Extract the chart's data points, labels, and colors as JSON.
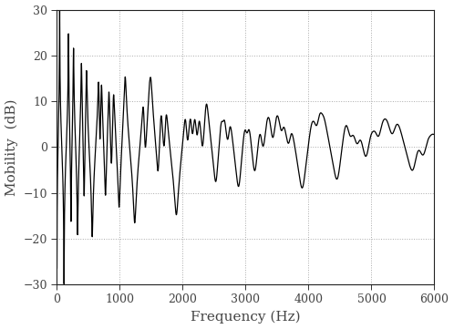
{
  "title": "",
  "xlabel": "Frequency (Hz)",
  "ylabel": "Mobility  (dB)",
  "xlim": [
    0,
    6000
  ],
  "ylim": [
    -30,
    30
  ],
  "xticks": [
    0,
    1000,
    2000,
    3000,
    4000,
    5000,
    6000
  ],
  "yticks": [
    -30,
    -20,
    -10,
    0,
    10,
    20,
    30
  ],
  "grid_color": "#aaaaaa",
  "line_color": "#000000",
  "line_width": 0.9,
  "background_color": "#ffffff",
  "figsize": [
    4.98,
    3.61
  ],
  "dpi": 100
}
